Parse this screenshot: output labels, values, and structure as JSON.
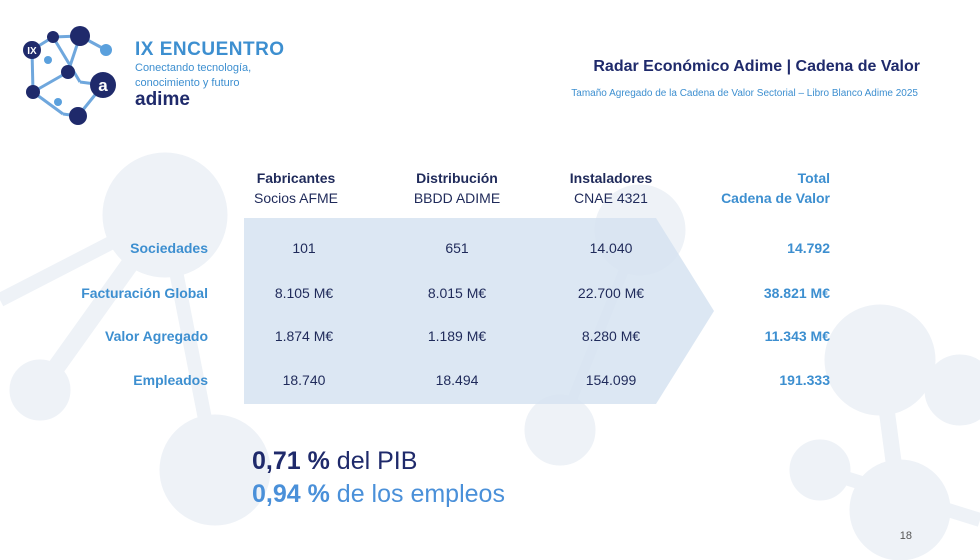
{
  "logo": {
    "badge": "IX",
    "letter": "a",
    "title": "IX ENCUENTRO",
    "tagline_1": "Conectando tecnología,",
    "tagline_2": "conocimiento y futuro",
    "brand": "adime"
  },
  "header": {
    "title": "Radar Económico Adime | Cadena de Valor",
    "subtitle": "Tamaño Agregado de la Cadena de Valor Sectorial – Libro Blanco Adime 2025"
  },
  "table": {
    "columns": [
      {
        "title": "Fabricantes",
        "source": "Socios AFME"
      },
      {
        "title": "Distribución",
        "source": "BBDD ADIME"
      },
      {
        "title": "Instaladores",
        "source": "CNAE 4321"
      }
    ],
    "total_header_1": "Total",
    "total_header_2": "Cadena de Valor",
    "rows": [
      {
        "label": "Sociedades",
        "values": [
          "101",
          "651",
          "14.040"
        ],
        "total": "14.792"
      },
      {
        "label": "Facturación Global",
        "values": [
          "8.105 M€",
          "8.015 M€",
          "22.700 M€"
        ],
        "total": "38.821 M€"
      },
      {
        "label": "Valor Agregado",
        "values": [
          "1.874 M€",
          "1.189 M€",
          "8.280 M€"
        ],
        "total": "11.343 M€"
      },
      {
        "label": "Empleados",
        "values": [
          "18.740",
          "18.494",
          "154.099"
        ],
        "total": "191.333"
      }
    ]
  },
  "highlights": {
    "pib_value": "0,71 %",
    "pib_text": " del PIB",
    "emp_value": "0,94 %",
    "emp_text": " de los empleos"
  },
  "page_number": "18",
  "colors": {
    "navy": "#1f2a6b",
    "blue": "#3d8fd0",
    "band": "#dbe7f3"
  }
}
